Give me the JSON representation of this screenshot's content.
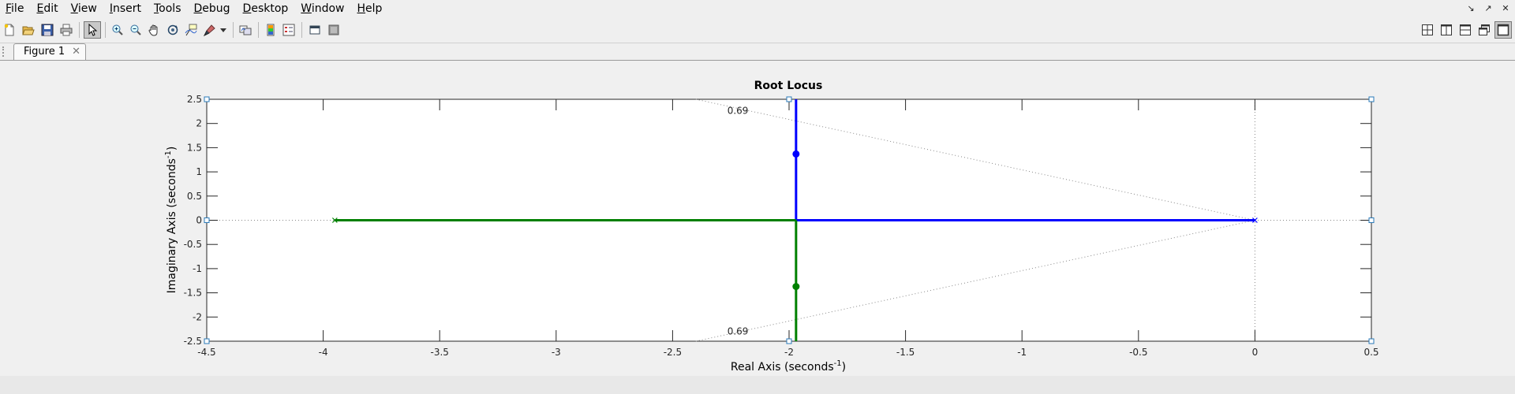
{
  "menu": {
    "items": [
      {
        "label": "File",
        "mnemonic": "F",
        "rest": "ile"
      },
      {
        "label": "Edit",
        "mnemonic": "E",
        "rest": "dit"
      },
      {
        "label": "View",
        "mnemonic": "V",
        "rest": "iew"
      },
      {
        "label": "Insert",
        "mnemonic": "I",
        "rest": "nsert"
      },
      {
        "label": "Tools",
        "mnemonic": "T",
        "rest": "ools"
      },
      {
        "label": "Debug",
        "mnemonic": "D",
        "rest": "ebug"
      },
      {
        "label": "Desktop",
        "mnemonic": "D",
        "rest": "esktop"
      },
      {
        "label": "Window",
        "mnemonic": "W",
        "rest": "indow"
      },
      {
        "label": "Help",
        "mnemonic": "H",
        "rest": "elp"
      }
    ]
  },
  "window_controls": [
    "undock-icon",
    "maximize-icon",
    "close-icon"
  ],
  "toolbar": {
    "left_icons": [
      "new-figure-icon",
      "open-file-icon",
      "save-icon",
      "print-icon",
      "edit-plot-icon",
      "zoom-in-icon",
      "zoom-out-icon",
      "pan-icon",
      "rotate-3d-icon",
      "data-cursor-icon",
      "brush-icon",
      "brush-dropdown-icon",
      "link-plot-icon",
      "insert-colorbar-icon",
      "insert-legend-icon",
      "hide-plot-tools-icon",
      "show-plot-tools-icon"
    ],
    "active_icon": "edit-plot-icon",
    "right_icons": [
      "tile-layout-icon",
      "left-right-layout-icon",
      "top-bottom-layout-icon",
      "float-layout-icon",
      "maximize-layout-icon"
    ]
  },
  "tabs": [
    {
      "label": "Figure 1"
    }
  ],
  "chart_data": {
    "type": "line",
    "title": "Root Locus",
    "xlabel": "Real Axis (seconds",
    "xlabel_sup": "-1",
    "xlabel_end": ")",
    "ylabel": "Imaginary Axis (seconds",
    "ylabel_sup": "-1",
    "ylabel_end": ")",
    "xlim": [
      -4.5,
      0.5
    ],
    "ylim": [
      -2.5,
      2.5
    ],
    "xticks": [
      -4.5,
      -4,
      -3.5,
      -3,
      -2.5,
      -2,
      -1.5,
      -1,
      -0.5,
      0,
      0.5
    ],
    "xtick_labels": [
      "-4.5",
      "-4",
      "-3.5",
      "-3",
      "-2.5",
      "-2",
      "-1.5",
      "-1",
      "-0.5",
      "0",
      "0.5"
    ],
    "yticks": [
      -2.5,
      -2,
      -1.5,
      -1,
      -0.5,
      0,
      0.5,
      1,
      1.5,
      2,
      2.5
    ],
    "ytick_labels": [
      "-2.5",
      "-2",
      "-1.5",
      "-1",
      "-0.5",
      "0",
      "0.5",
      "1",
      "1.5",
      "2",
      "2.5"
    ],
    "grid": false,
    "series": [
      {
        "color": "#0000ff",
        "segments": [
          [
            [
              0,
              0
            ],
            [
              -1.97,
              0
            ]
          ],
          [
            [
              -1.97,
              0
            ],
            [
              -1.97,
              2.5
            ]
          ]
        ],
        "pole": [
          0,
          0
        ],
        "marker": [
          -1.97,
          1.37
        ]
      },
      {
        "color": "#008000",
        "segments": [
          [
            [
              -3.95,
              0
            ],
            [
              -1.97,
              0
            ]
          ],
          [
            [
              -1.97,
              0
            ],
            [
              -1.97,
              -2.5
            ]
          ]
        ],
        "pole": [
          -3.95,
          0
        ],
        "marker": [
          -1.97,
          -1.37
        ]
      }
    ],
    "damping_lines": {
      "color": "#888888",
      "label": "0.69",
      "upper": [
        [
          0,
          0
        ],
        [
          -2.4,
          2.5
        ]
      ],
      "lower": [
        [
          0,
          0
        ],
        [
          -2.4,
          -2.5
        ]
      ],
      "label_points": [
        [
          -2.22,
          2.28
        ],
        [
          -2.22,
          -2.28
        ]
      ]
    },
    "axis_lines": {
      "color": "#888888",
      "real_axis_y": 0,
      "imag_axis_x": 0
    }
  }
}
